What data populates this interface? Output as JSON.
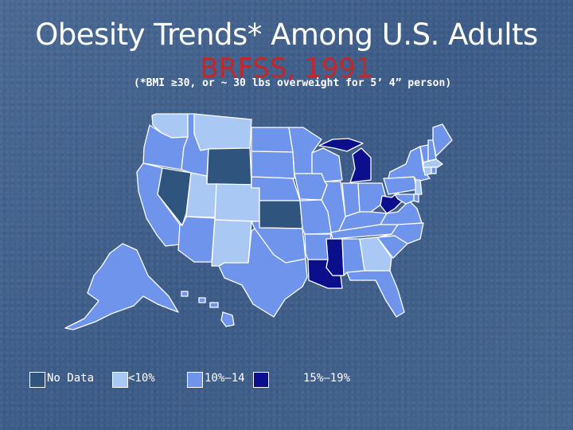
{
  "title": "Obesity Trends* Among U.S. Adults",
  "subtitle": "BRFSS, 1991",
  "note": "(*BMI ≥30, or ~ 30 lbs overweight for 5’ 4” person)",
  "colors": {
    "no_data": "#2f557f",
    "lt10": "#a9c8f3",
    "b10_14": "#6f94ec",
    "b15_19": "#0b0f8c",
    "border": "#ffffff"
  },
  "legend": [
    {
      "key": "no_data",
      "label": "No Data"
    },
    {
      "key": "lt10",
      "label": "<10%"
    },
    {
      "key": "b10_14",
      "label": "10%–14"
    },
    {
      "key": "b15_19",
      "label": "15%–19%"
    }
  ],
  "states": {
    "WA": "lt10",
    "OR": "b10_14",
    "CA": "b10_14",
    "NV": "no_data",
    "ID": "b10_14",
    "MT": "lt10",
    "WY": "no_data",
    "UT": "lt10",
    "CO": "lt10",
    "AZ": "b10_14",
    "NM": "lt10",
    "ND": "b10_14",
    "SD": "b10_14",
    "NE": "b10_14",
    "KS": "no_data",
    "OK": "b10_14",
    "TX": "b10_14",
    "MN": "b10_14",
    "IA": "b10_14",
    "MO": "b10_14",
    "AR": "b10_14",
    "LA": "b15_19",
    "WI": "b10_14",
    "IL": "b10_14",
    "MI": "b15_19",
    "IN": "b10_14",
    "OH": "b10_14",
    "KY": "b10_14",
    "TN": "b10_14",
    "MS": "b15_19",
    "AL": "b10_14",
    "GA": "lt10",
    "FL": "b10_14",
    "SC": "b10_14",
    "NC": "b10_14",
    "VA": "b10_14",
    "WV": "b15_19",
    "PA": "b10_14",
    "NY": "b10_14",
    "VT": "b10_14",
    "NH": "b10_14",
    "ME": "b10_14",
    "MA": "lt10",
    "CT": "lt10",
    "RI": "b10_14",
    "NJ": "lt10",
    "DE": "b10_14",
    "MD": "b10_14",
    "AK": "b10_14",
    "HI": "b10_14"
  }
}
